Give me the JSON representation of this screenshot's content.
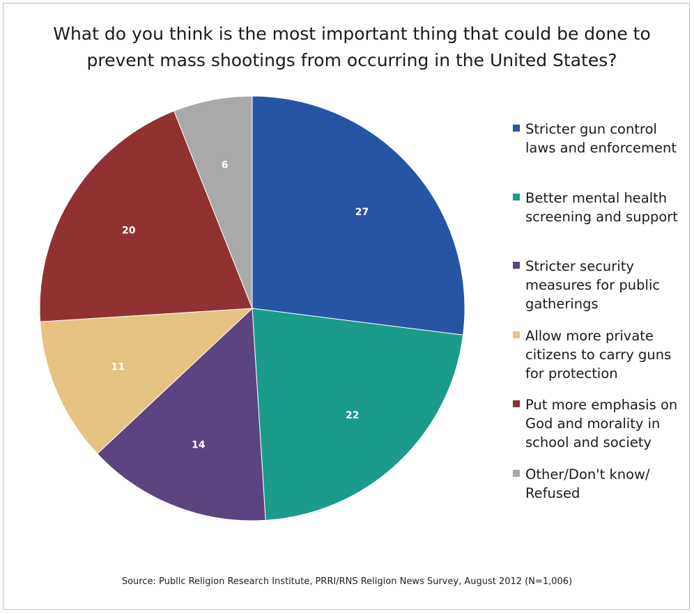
{
  "chart_data": {
    "type": "pie",
    "title": "What do you think is the most important thing that could be done to prevent mass shootings from occurring in the United States?",
    "source": "Source: Public Religion Research Institute, PRRI/RNS Religion News Survey, August 2012 (N=1,006)",
    "legend_position": "right",
    "slices": [
      {
        "label": "Stricter gun control laws and enforcement",
        "value": 27,
        "color": "#2655a3"
      },
      {
        "label": "Better mental health screening and support",
        "value": 22,
        "color": "#1b9b8a"
      },
      {
        "label": "Stricter security measures for public gatherings",
        "value": 14,
        "color": "#5c4480"
      },
      {
        "label": "Allow more private citizens to carry guns for protection",
        "value": 11,
        "color": "#e6c283"
      },
      {
        "label": "Put more emphasis on God and morality in school and society",
        "value": 20,
        "color": "#913232"
      },
      {
        "label": "Other/Don't know/ Refused",
        "value": 6,
        "color": "#a9a9a9"
      }
    ]
  }
}
